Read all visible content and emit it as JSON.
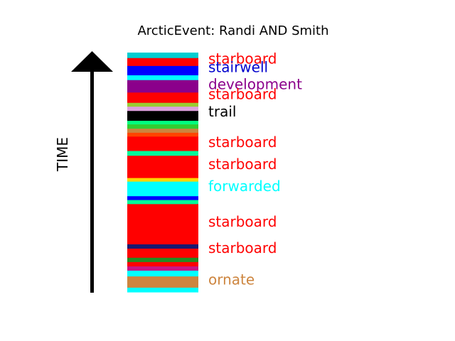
{
  "chart_data": {
    "type": "bar",
    "title": "ArcticEvent: Randi AND Smith",
    "ylabel": "TIME",
    "segments": [
      {
        "top": 0.0,
        "bottom": 0.023,
        "color": "#00ced1"
      },
      {
        "top": 0.023,
        "bottom": 0.056,
        "color": "#ff0000"
      },
      {
        "top": 0.056,
        "bottom": 0.095,
        "color": "#0000ff"
      },
      {
        "top": 0.095,
        "bottom": 0.115,
        "color": "#00ffff"
      },
      {
        "top": 0.115,
        "bottom": 0.167,
        "color": "#8b008b"
      },
      {
        "top": 0.167,
        "bottom": 0.21,
        "color": "#ff0000"
      },
      {
        "top": 0.21,
        "bottom": 0.226,
        "color": "#9acd32"
      },
      {
        "top": 0.226,
        "bottom": 0.244,
        "color": "#dda0dd"
      },
      {
        "top": 0.244,
        "bottom": 0.285,
        "color": "#000000"
      },
      {
        "top": 0.285,
        "bottom": 0.3,
        "color": "#00ff7f"
      },
      {
        "top": 0.3,
        "bottom": 0.318,
        "color": "#32cd32"
      },
      {
        "top": 0.318,
        "bottom": 0.335,
        "color": "#cd853f"
      },
      {
        "top": 0.335,
        "bottom": 0.351,
        "color": "#ff4500"
      },
      {
        "top": 0.351,
        "bottom": 0.411,
        "color": "#ff0000"
      },
      {
        "top": 0.411,
        "bottom": 0.431,
        "color": "#00fa9a"
      },
      {
        "top": 0.431,
        "bottom": 0.524,
        "color": "#ff0000"
      },
      {
        "top": 0.524,
        "bottom": 0.539,
        "color": "#ffd700"
      },
      {
        "top": 0.539,
        "bottom": 0.6,
        "color": "#00ffff"
      },
      {
        "top": 0.6,
        "bottom": 0.616,
        "color": "#0000ff"
      },
      {
        "top": 0.616,
        "bottom": 0.633,
        "color": "#00fa9a"
      },
      {
        "top": 0.633,
        "bottom": 0.801,
        "color": "#ff0000"
      },
      {
        "top": 0.801,
        "bottom": 0.819,
        "color": "#191970"
      },
      {
        "top": 0.819,
        "bottom": 0.857,
        "color": "#ff0000"
      },
      {
        "top": 0.857,
        "bottom": 0.875,
        "color": "#228b22"
      },
      {
        "top": 0.875,
        "bottom": 0.893,
        "color": "#ff0000"
      },
      {
        "top": 0.893,
        "bottom": 0.911,
        "color": "#c71585"
      },
      {
        "top": 0.911,
        "bottom": 0.935,
        "color": "#00ffff"
      },
      {
        "top": 0.935,
        "bottom": 0.982,
        "color": "#cd853f"
      },
      {
        "top": 0.982,
        "bottom": 1.0,
        "color": "#00ffff"
      }
    ],
    "labels": [
      {
        "text": "starboard",
        "pos": 0.03,
        "color": "#ff0000"
      },
      {
        "text": "stairwell",
        "pos": 0.065,
        "color": "#0000cd"
      },
      {
        "text": "development",
        "pos": 0.137,
        "color": "#8b008b"
      },
      {
        "text": "starboard",
        "pos": 0.178,
        "color": "#ff0000"
      },
      {
        "text": "trail",
        "pos": 0.25,
        "color": "#000000"
      },
      {
        "text": "starboard",
        "pos": 0.378,
        "color": "#ff0000"
      },
      {
        "text": "starboard",
        "pos": 0.47,
        "color": "#ff0000"
      },
      {
        "text": "forwarded",
        "pos": 0.562,
        "color": "#00ffff"
      },
      {
        "text": "starboard",
        "pos": 0.711,
        "color": "#ff0000"
      },
      {
        "text": "starboard",
        "pos": 0.821,
        "color": "#ff0000"
      },
      {
        "text": "ornate",
        "pos": 0.953,
        "color": "#cd853f"
      }
    ]
  }
}
